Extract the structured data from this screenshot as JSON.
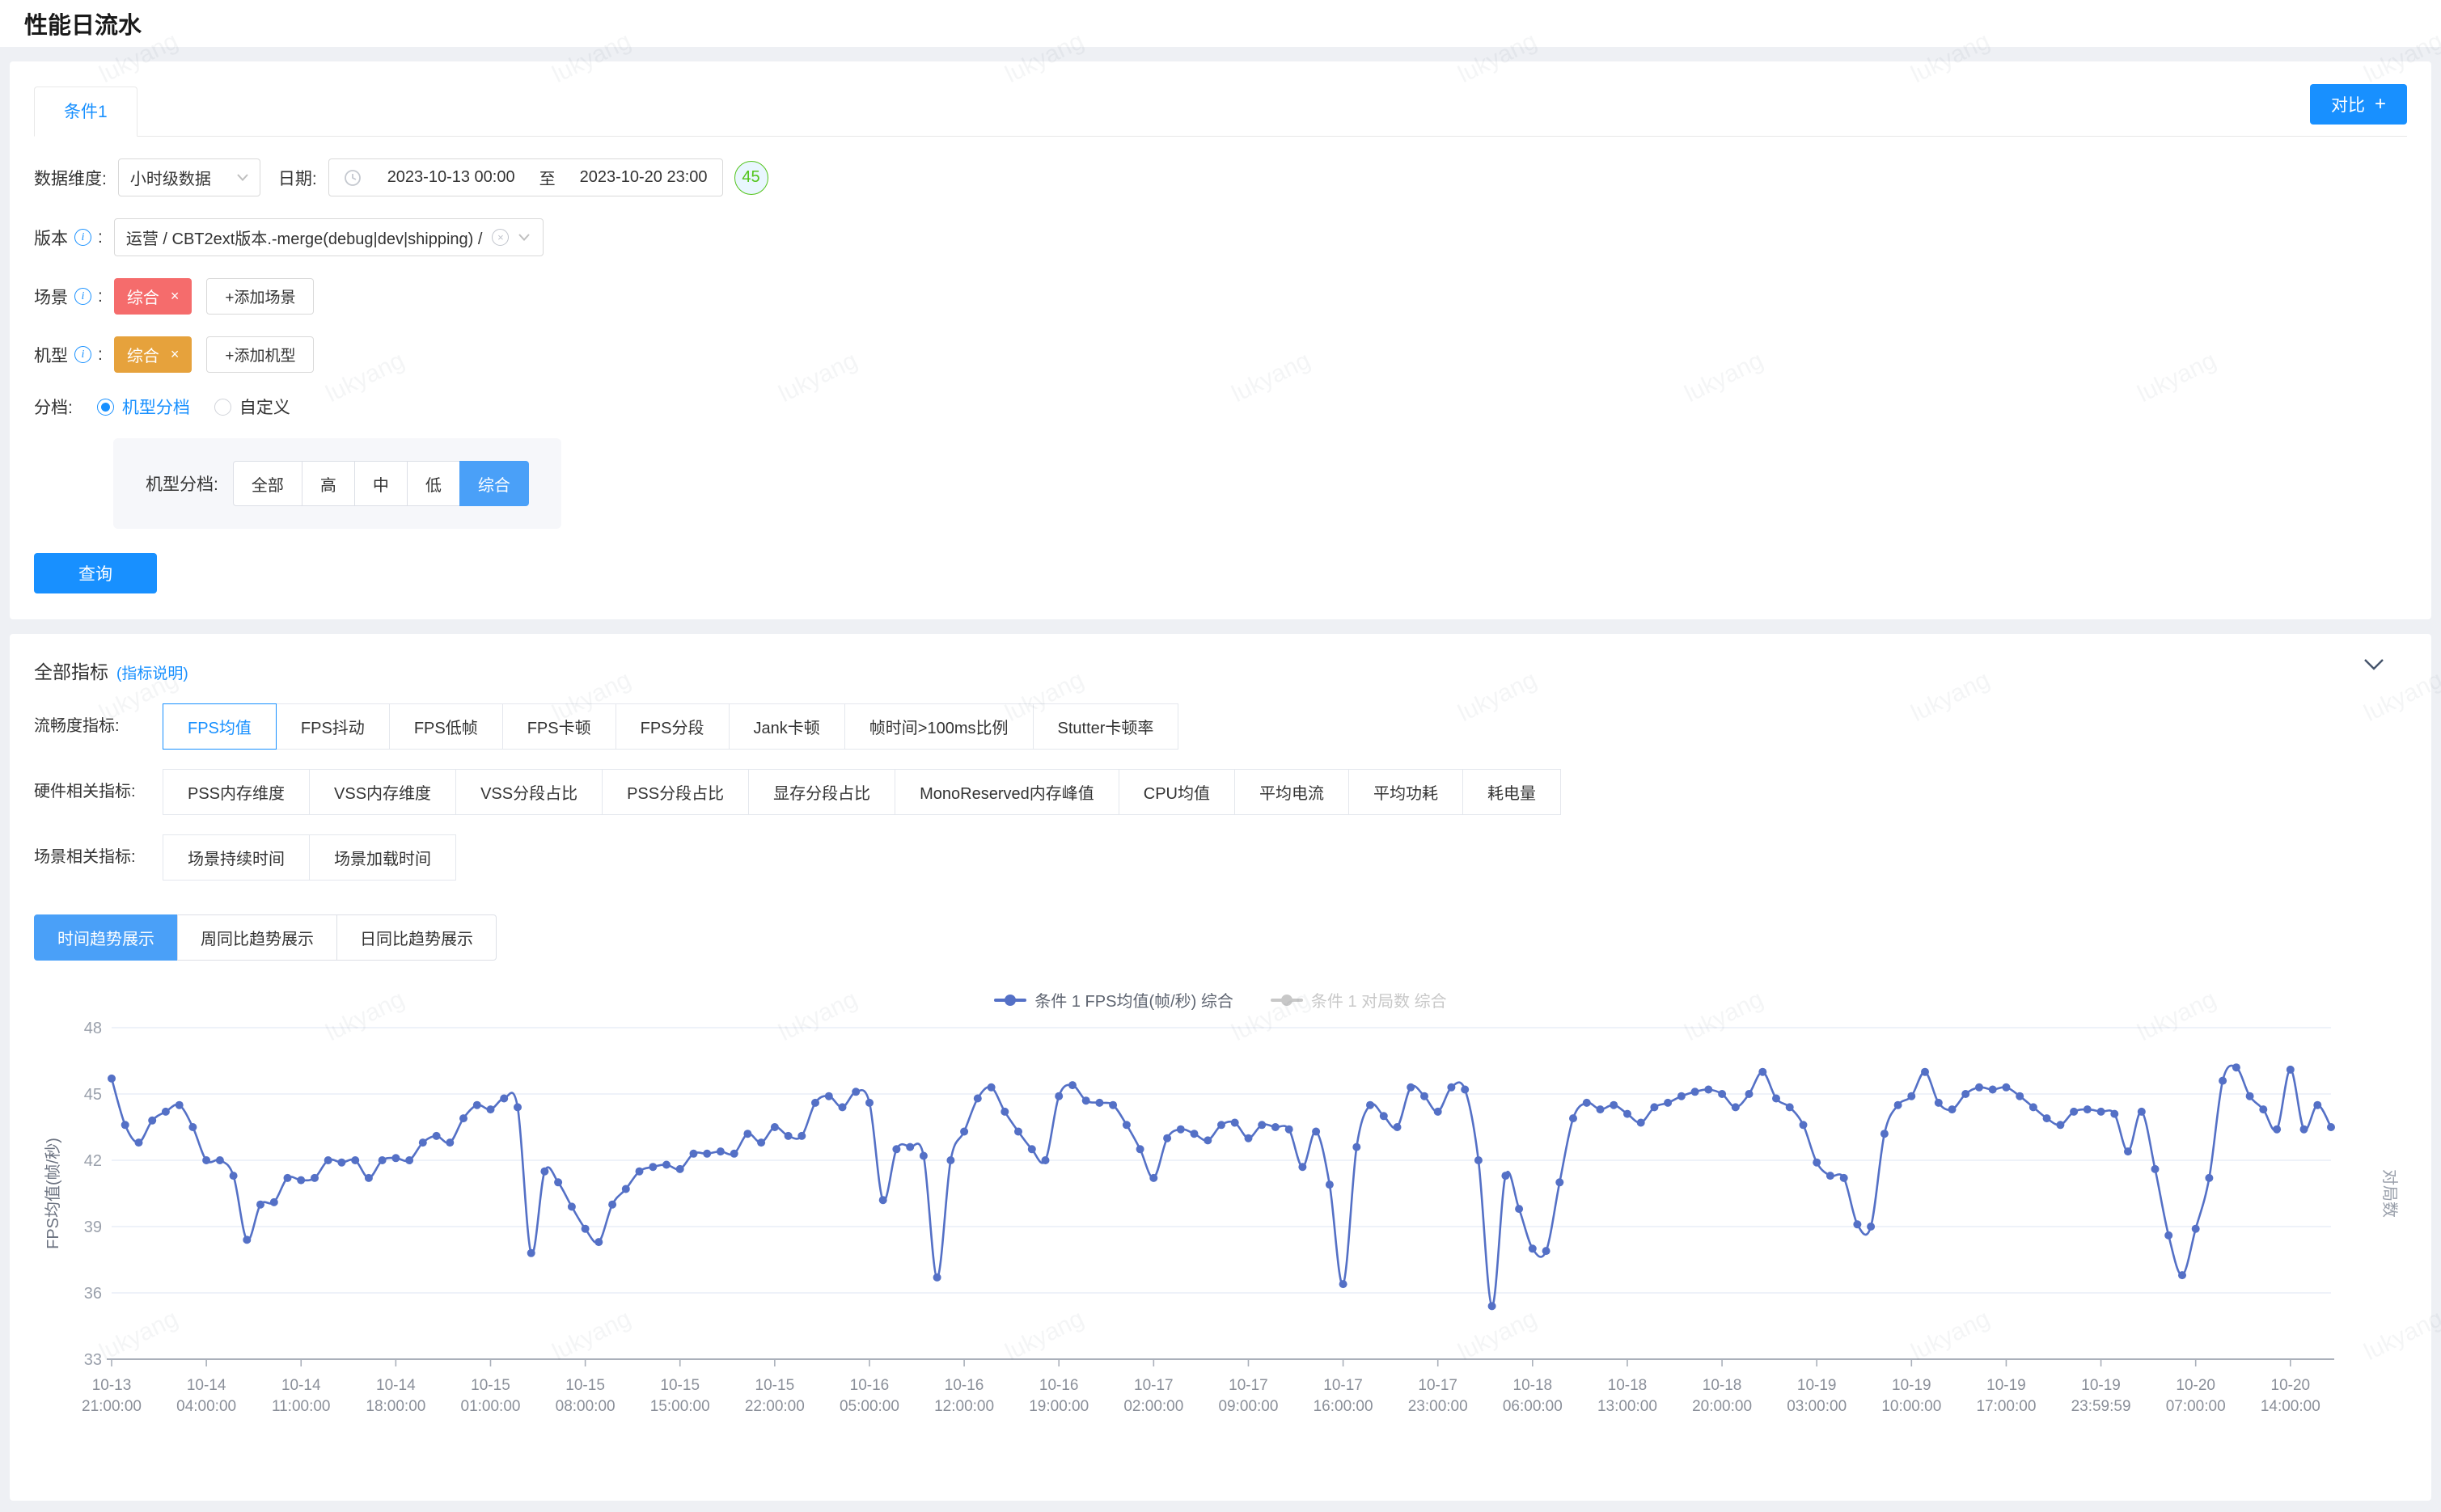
{
  "page": {
    "title": "性能日流水"
  },
  "watermark": {
    "text": "lukyang"
  },
  "conditions_card": {
    "tab_label": "条件1",
    "compare_button": "对比",
    "filters": {
      "data_dim_label": "数据维度:",
      "data_dim_value": "小时级数据",
      "date_label": "日期:",
      "date_start": "2023-10-13 00:00",
      "date_separator": "至",
      "date_end": "2023-10-20 23:00",
      "date_badge": "45",
      "version_label": "版本",
      "version_colon": ":",
      "version_value": "运营 / CBT2ext版本.-merge(debug|dev|shipping) /",
      "scene_label": "场景",
      "scene_colon": ":",
      "scene_tag": "综合",
      "scene_tag_close": "×",
      "scene_add": "+添加场景",
      "device_label": "机型",
      "device_colon": ":",
      "device_tag": "综合",
      "device_tag_close": "×",
      "device_add": "+添加机型",
      "tier_label": "分档:",
      "tier_radio_selected": "机型分档",
      "tier_radio_other": "自定义",
      "tier_group_label": "机型分档:",
      "tier_options": [
        "全部",
        "高",
        "中",
        "低",
        "综合"
      ],
      "tier_selected": "综合",
      "query_button": "查询"
    }
  },
  "metrics_card": {
    "title": "全部指标",
    "subtitle": "(指标说明)",
    "metric_rows": [
      {
        "label": "流畅度指标:",
        "options": [
          "FPS均值",
          "FPS抖动",
          "FPS低帧",
          "FPS卡顿",
          "FPS分段",
          "Jank卡顿",
          "帧时间>100ms比例",
          "Stutter卡顿率"
        ],
        "selected": "FPS均值"
      },
      {
        "label": "硬件相关指标:",
        "options": [
          "PSS内存维度",
          "VSS内存维度",
          "VSS分段占比",
          "PSS分段占比",
          "显存分段占比",
          "MonoReserved内存峰值",
          "CPU均值",
          "平均电流",
          "平均功耗",
          "耗电量"
        ],
        "selected": ""
      },
      {
        "label": "场景相关指标:",
        "options": [
          "场景持续时间",
          "场景加载时间"
        ],
        "selected": ""
      }
    ],
    "trend_tabs": [
      "时间趋势展示",
      "周同比趋势展示",
      "日同比趋势展示"
    ],
    "trend_selected": "时间趋势展示"
  },
  "chart_data": {
    "type": "line",
    "title": "",
    "legend": [
      {
        "name": "条件 1 FPS均值(帧/秒) 综合",
        "color": "#5470c6",
        "active": true
      },
      {
        "name": "条件 1 对局数 综合",
        "color": "#c8c8c8",
        "active": false
      }
    ],
    "ylabel_left": "FPS均值(帧/秒)",
    "ylabel_right": "对局数",
    "ylim": [
      33,
      48
    ],
    "yticks": [
      33,
      36,
      39,
      42,
      45,
      48
    ],
    "grid": true,
    "legend_position": "top-center",
    "x_start": "2023-10-13 21:00:00",
    "x_interval_hours": 1,
    "xtick_every": 7,
    "xtick_labels": [
      [
        "10-13",
        "21:00:00"
      ],
      [
        "10-14",
        "04:00:00"
      ],
      [
        "10-14",
        "11:00:00"
      ],
      [
        "10-14",
        "18:00:00"
      ],
      [
        "10-15",
        "01:00:00"
      ],
      [
        "10-15",
        "08:00:00"
      ],
      [
        "10-15",
        "15:00:00"
      ],
      [
        "10-15",
        "22:00:00"
      ],
      [
        "10-16",
        "05:00:00"
      ],
      [
        "10-16",
        "12:00:00"
      ],
      [
        "10-16",
        "19:00:00"
      ],
      [
        "10-17",
        "02:00:00"
      ],
      [
        "10-17",
        "09:00:00"
      ],
      [
        "10-17",
        "16:00:00"
      ],
      [
        "10-17",
        "23:00:00"
      ],
      [
        "10-18",
        "06:00:00"
      ],
      [
        "10-18",
        "13:00:00"
      ],
      [
        "10-18",
        "20:00:00"
      ],
      [
        "10-19",
        "03:00:00"
      ],
      [
        "10-19",
        "10:00:00"
      ],
      [
        "10-19",
        "17:00:00"
      ],
      [
        "10-19",
        "23:59:59"
      ],
      [
        "10-20",
        "07:00:00"
      ],
      [
        "10-20",
        "14:00:00"
      ]
    ],
    "series": [
      {
        "name": "条件 1 FPS均值(帧/秒) 综合",
        "values": [
          45.7,
          43.6,
          42.8,
          43.8,
          44.2,
          44.5,
          43.5,
          42.0,
          42.0,
          41.3,
          38.4,
          40.0,
          40.1,
          41.2,
          41.1,
          41.2,
          42.0,
          41.9,
          42.0,
          41.2,
          42.0,
          42.1,
          42.0,
          42.8,
          43.1,
          42.8,
          43.9,
          44.5,
          44.3,
          44.8,
          44.4,
          37.8,
          41.5,
          41.0,
          39.9,
          38.9,
          38.3,
          40.0,
          40.7,
          41.5,
          41.7,
          41.8,
          41.6,
          42.3,
          42.3,
          42.4,
          42.3,
          43.2,
          42.8,
          43.5,
          43.1,
          43.1,
          44.6,
          44.9,
          44.4,
          45.1,
          44.6,
          40.2,
          42.5,
          42.6,
          42.2,
          36.7,
          42.0,
          43.3,
          44.8,
          45.3,
          44.2,
          43.3,
          42.5,
          42.0,
          44.9,
          45.4,
          44.7,
          44.6,
          44.5,
          43.6,
          42.5,
          41.2,
          43.0,
          43.4,
          43.2,
          42.9,
          43.6,
          43.7,
          43.0,
          43.6,
          43.5,
          43.4,
          41.7,
          43.3,
          40.9,
          36.4,
          42.6,
          44.5,
          44.0,
          43.5,
          45.3,
          44.9,
          44.2,
          45.3,
          45.2,
          42.0,
          35.4,
          41.3,
          39.8,
          38.0,
          37.9,
          41.0,
          43.9,
          44.6,
          44.3,
          44.5,
          44.1,
          43.7,
          44.4,
          44.6,
          44.9,
          45.1,
          45.2,
          45.0,
          44.4,
          45.0,
          46.0,
          44.8,
          44.4,
          43.6,
          41.9,
          41.3,
          41.2,
          39.1,
          39.0,
          43.2,
          44.5,
          44.9,
          46.0,
          44.6,
          44.3,
          45.0,
          45.3,
          45.2,
          45.3,
          44.9,
          44.4,
          43.9,
          43.6,
          44.2,
          44.3,
          44.2,
          44.1,
          42.4,
          44.2,
          41.6,
          38.6,
          36.8,
          38.9,
          41.2,
          45.6,
          46.2,
          44.9,
          44.3,
          43.4,
          46.1,
          43.4,
          44.5,
          43.5
        ]
      }
    ]
  }
}
